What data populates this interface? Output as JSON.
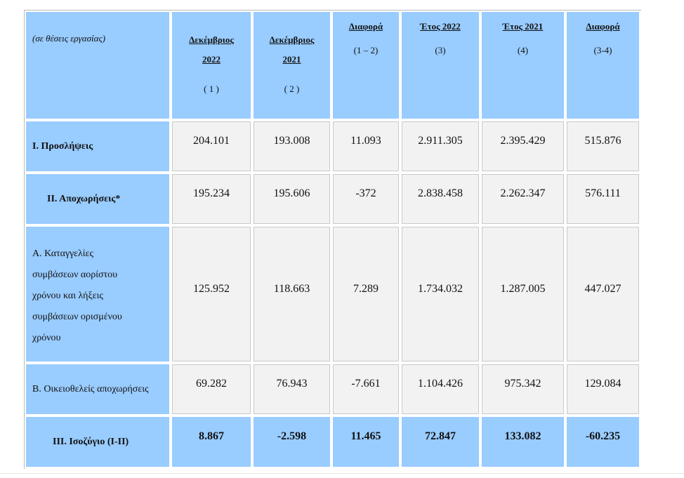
{
  "header": {
    "unit_note": "(σε θέσεις εργασίας)",
    "columns": [
      {
        "title_line1": "Δεκέμβριος",
        "title_line2": "2022",
        "sub": "( 1 )"
      },
      {
        "title_line1": "Δεκέμβριος",
        "title_line2": "2021",
        "sub": "( 2 )"
      },
      {
        "title_line1": "Διαφορά",
        "title_line2": "",
        "sub": "(1 – 2)"
      },
      {
        "title_line1": "Έτος 2022",
        "title_line2": "",
        "sub": "(3)"
      },
      {
        "title_line1": "Έτος 2021",
        "title_line2": "",
        "sub": "(4)"
      },
      {
        "title_line1": "Διαφορά",
        "title_line2": "",
        "sub": "(3-4)"
      }
    ]
  },
  "rows": [
    {
      "label": "Ι. Προσλήψεις",
      "values": [
        "204.101",
        "193.008",
        "11.093",
        "2.911.305",
        "2.395.429",
        "515.876"
      ]
    },
    {
      "label": "ΙΙ. Αποχωρήσεις*",
      "values": [
        "195.234",
        "195.606",
        "-372",
        "2.838.458",
        "2.262.347",
        "576.111"
      ]
    },
    {
      "label_lines": [
        "Α. Καταγγελίες",
        "συμβάσεων αορίστου",
        "χρόνου  και λήξεις",
        "συμβάσεων ορισμένου",
        "χρόνου"
      ],
      "values": [
        "125.952",
        "118.663",
        "7.289",
        "1.734.032",
        "1.287.005",
        "447.027"
      ]
    },
    {
      "label": "Β. Οικειοθελείς  αποχωρήσεις",
      "values": [
        "69.282",
        "76.943",
        "-7.661",
        "1.104.426",
        "975.342",
        "129.084"
      ]
    },
    {
      "label": "ΙΙΙ. Ισοζύγιο (Ι-ΙΙ)",
      "values": [
        "8.867",
        "-2.598",
        "11.465",
        "72.847",
        "133.082",
        "-60.235"
      ]
    }
  ],
  "colors": {
    "header_blue": "#99ccff",
    "cell_grey": "#f2f2f2"
  }
}
